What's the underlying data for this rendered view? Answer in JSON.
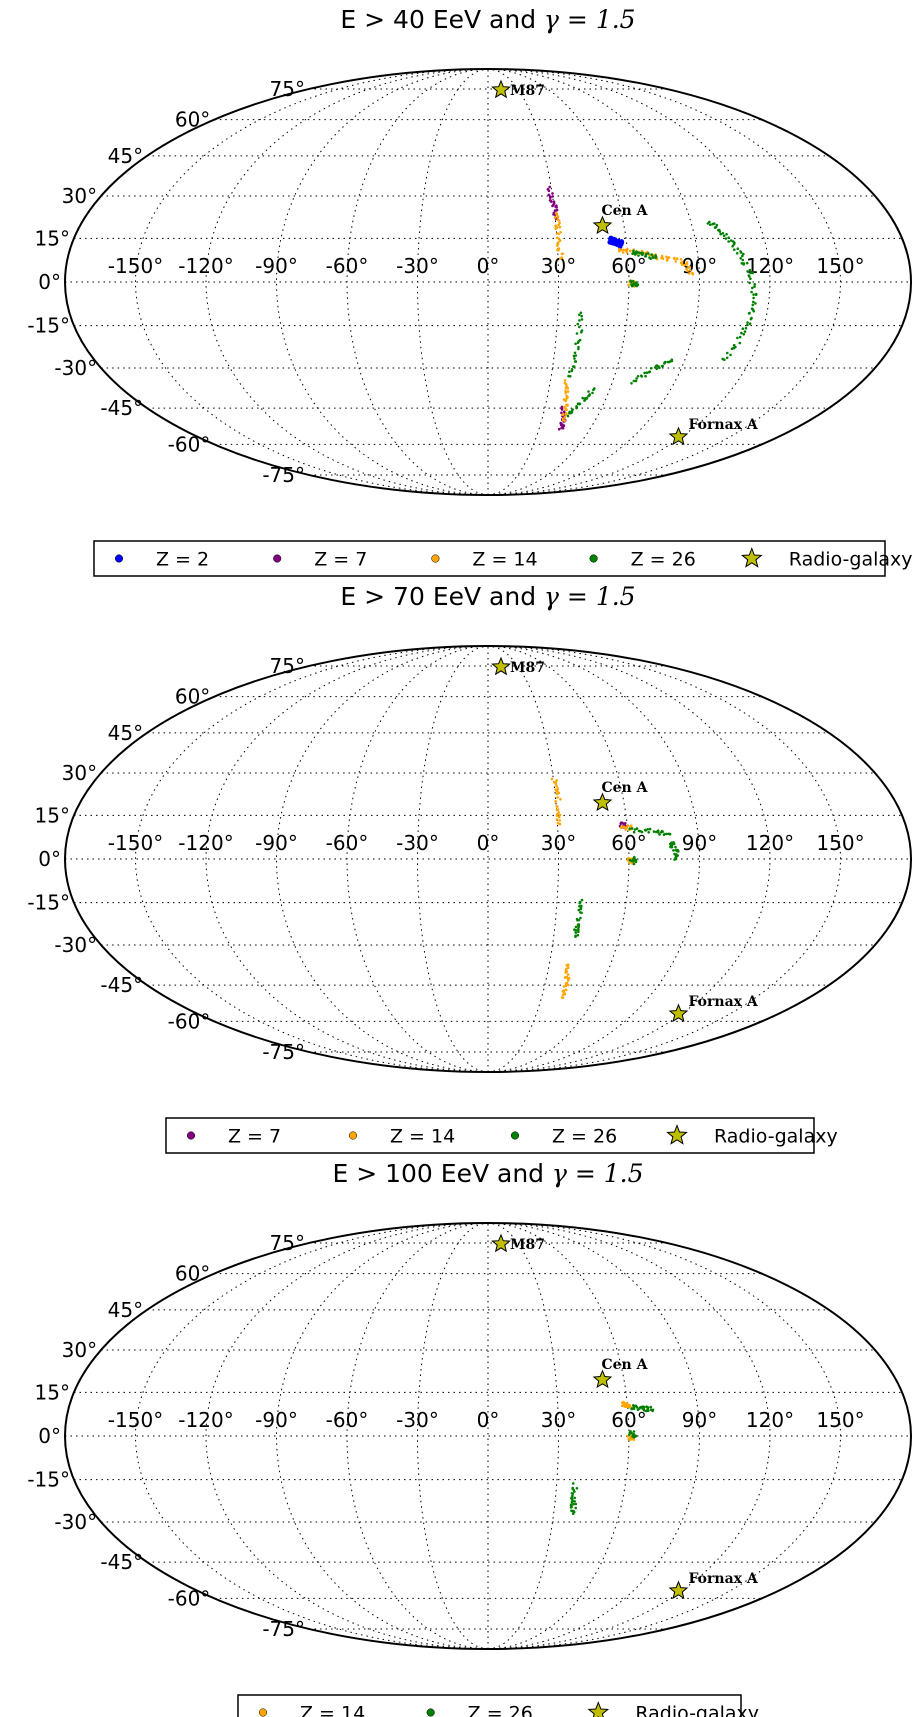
{
  "figure": {
    "panels": [
      {
        "title": "E > 40 EeV and ",
        "title_math": "γ = 1.5",
        "legend": [
          {
            "label": "Z = 2",
            "color": "#0000ff",
            "marker": "dot"
          },
          {
            "label": "Z = 7",
            "color": "#800080",
            "marker": "dot"
          },
          {
            "label": "Z = 14",
            "color": "#ffa500",
            "marker": "dot"
          },
          {
            "label": "Z = 26",
            "color": "#008000",
            "marker": "dot"
          },
          {
            "label": "Radio-galaxy",
            "color": "#bfbf00",
            "marker": "star"
          }
        ]
      },
      {
        "title": "E > 70 EeV and ",
        "title_math": "γ = 1.5",
        "legend": [
          {
            "label": "Z = 7",
            "color": "#800080",
            "marker": "dot"
          },
          {
            "label": "Z = 14",
            "color": "#ffa500",
            "marker": "dot"
          },
          {
            "label": "Z = 26",
            "color": "#008000",
            "marker": "dot"
          },
          {
            "label": "Radio-galaxy",
            "color": "#bfbf00",
            "marker": "star"
          }
        ]
      },
      {
        "title": "E > 100 EeV and ",
        "title_math": "γ = 1.5",
        "legend": [
          {
            "label": "Z = 14",
            "color": "#ffa500",
            "marker": "dot"
          },
          {
            "label": "Z = 26",
            "color": "#008000",
            "marker": "dot"
          },
          {
            "label": "Radio-galaxy",
            "color": "#bfbf00",
            "marker": "star"
          }
        ]
      }
    ]
  },
  "chart_data": [
    {
      "type": "scatter",
      "projection": "mollweide",
      "title": "E > 40 EeV and γ = 1.5",
      "xlim": [
        -180,
        180
      ],
      "ylim": [
        -90,
        90
      ],
      "longitude_ticks": [
        "-150°",
        "-120°",
        "-90°",
        "-60°",
        "-30°",
        "0°",
        "30°",
        "60°",
        "90°",
        "120°",
        "150°"
      ],
      "latitude_ticks": [
        "75°",
        "60°",
        "45°",
        "30°",
        "15°",
        "0°",
        "-15°",
        "-30°",
        "-45°",
        "-60°",
        "-75°"
      ],
      "grid": true,
      "legend_position": "bottom",
      "sources": [
        {
          "name": "M87",
          "lon": 12.8,
          "lat": 74.5
        },
        {
          "name": "Cen A",
          "lon": 50.5,
          "lat": 19.4
        },
        {
          "name": "Fornax A",
          "lon": 118.0,
          "lat": -56.7
        }
      ],
      "series": [
        {
          "name": "Z = 2",
          "color": "#0000ff",
          "tracks": [
            [
              [
                53,
                14.5
              ],
              [
                56,
                13.5
              ],
              [
                58,
                12.8
              ]
            ]
          ]
        },
        {
          "name": "Z = 7",
          "color": "#800080",
          "tracks": [
            [
              [
                29,
                33
              ],
              [
                30,
                27
              ],
              [
                30.5,
                22
              ]
            ],
            [
              [
                40,
                -45
              ],
              [
                42,
                -50
              ],
              [
                43,
                -53
              ]
            ]
          ]
        },
        {
          "name": "Z = 14",
          "color": "#ffa500",
          "tracks": [
            [
              [
                30.5,
                24
              ],
              [
                31,
                16
              ],
              [
                31,
                8
              ]
            ],
            [
              [
                56,
                11
              ],
              [
                64,
                10.5
              ],
              [
                74,
                8.5
              ],
              [
                83,
                7
              ],
              [
                87,
                3
              ]
            ],
            [
              [
                60,
                0
              ],
              [
                62,
                -1
              ]
            ],
            [
              [
                38,
                -35
              ],
              [
                40,
                -43
              ],
              [
                43,
                -50
              ]
            ]
          ]
        },
        {
          "name": "Z = 26",
          "color": "#008000",
          "tracks": [
            [
              [
                62,
                10
              ],
              [
                66,
                9.5
              ],
              [
                72,
                8.5
              ]
            ],
            [
              [
                61,
                0
              ],
              [
                63,
                -1
              ]
            ],
            [
              [
                40,
                -10
              ],
              [
                40,
                -23
              ],
              [
                39,
                -33
              ]
            ],
            [
              [
                44,
                -48
              ],
              [
                48,
                -43
              ],
              [
                52,
                -38
              ]
            ],
            [
              [
                70,
                -35
              ],
              [
                78,
                -30
              ],
              [
                84,
                -27
              ]
            ],
            [
              [
                98,
                21
              ],
              [
                104,
                16
              ],
              [
                108,
                10
              ],
              [
                112,
                2
              ],
              [
                114,
                -8
              ],
              [
                112,
                -18
              ],
              [
                108,
                -27
              ]
            ]
          ]
        }
      ]
    },
    {
      "type": "scatter",
      "projection": "mollweide",
      "title": "E > 70 EeV and γ = 1.5",
      "xlim": [
        -180,
        180
      ],
      "ylim": [
        -90,
        90
      ],
      "longitude_ticks": [
        "-150°",
        "-120°",
        "-90°",
        "-60°",
        "-30°",
        "0°",
        "30°",
        "60°",
        "90°",
        "120°",
        "150°"
      ],
      "latitude_ticks": [
        "75°",
        "60°",
        "45°",
        "30°",
        "15°",
        "0°",
        "-15°",
        "-30°",
        "-45°",
        "-60°",
        "-75°"
      ],
      "grid": true,
      "legend_position": "bottom",
      "sources": [
        {
          "name": "M87",
          "lon": 12.8,
          "lat": 74.5
        },
        {
          "name": "Cen A",
          "lon": 50.5,
          "lat": 19.4
        },
        {
          "name": "Fornax A",
          "lon": 118.0,
          "lat": -56.7
        }
      ],
      "series": [
        {
          "name": "Z = 7",
          "color": "#800080",
          "tracks": [
            [
              [
                58,
                12
              ],
              [
                59,
                11.5
              ]
            ]
          ]
        },
        {
          "name": "Z = 14",
          "color": "#ffa500",
          "tracks": [
            [
              [
                30.5,
                28
              ],
              [
                31,
                20
              ],
              [
                31,
                12
              ]
            ],
            [
              [
                58,
                11
              ],
              [
                62,
                10.5
              ]
            ],
            [
              [
                60,
                0
              ],
              [
                62,
                -1
              ]
            ],
            [
              [
                39,
                -37
              ],
              [
                41,
                -44
              ],
              [
                42,
                -50
              ]
            ]
          ]
        },
        {
          "name": "Z = 26",
          "color": "#008000",
          "tracks": [
            [
              [
                62,
                10
              ],
              [
                70,
                9.5
              ],
              [
                78,
                8.5
              ]
            ],
            [
              [
                78,
                6
              ],
              [
                80,
                3
              ],
              [
                80,
                0
              ]
            ],
            [
              [
                61,
                0
              ],
              [
                63,
                -1
              ]
            ],
            [
              [
                40,
                -14
              ],
              [
                40,
                -22
              ],
              [
                40,
                -27
              ]
            ]
          ]
        }
      ]
    },
    {
      "type": "scatter",
      "projection": "mollweide",
      "title": "E > 100 EeV and γ = 1.5",
      "xlim": [
        -180,
        180
      ],
      "ylim": [
        -90,
        90
      ],
      "longitude_ticks": [
        "-150°",
        "-120°",
        "-90°",
        "-60°",
        "-30°",
        "0°",
        "30°",
        "60°",
        "90°",
        "120°",
        "150°"
      ],
      "latitude_ticks": [
        "75°",
        "60°",
        "45°",
        "30°",
        "15°",
        "0°",
        "-15°",
        "-30°",
        "-45°",
        "-60°",
        "-75°"
      ],
      "grid": true,
      "legend_position": "bottom",
      "sources": [
        {
          "name": "M87",
          "lon": 12.8,
          "lat": 74.5
        },
        {
          "name": "Cen A",
          "lon": 50.5,
          "lat": 19.4
        },
        {
          "name": "Fornax A",
          "lon": 118.0,
          "lat": -56.7
        }
      ],
      "series": [
        {
          "name": "Z = 14",
          "color": "#ffa500",
          "tracks": [
            [
              [
                58,
                11
              ],
              [
                61,
                10.5
              ]
            ],
            [
              [
                60,
                0
              ],
              [
                62,
                -1
              ]
            ]
          ]
        },
        {
          "name": "Z = 26",
          "color": "#008000",
          "tracks": [
            [
              [
                62,
                10
              ],
              [
                66,
                9.5
              ],
              [
                70,
                9
              ]
            ],
            [
              [
                61,
                1
              ],
              [
                63,
                0
              ]
            ],
            [
              [
                38,
                -17
              ],
              [
                38,
                -23
              ],
              [
                39,
                -27
              ]
            ]
          ]
        }
      ]
    }
  ]
}
